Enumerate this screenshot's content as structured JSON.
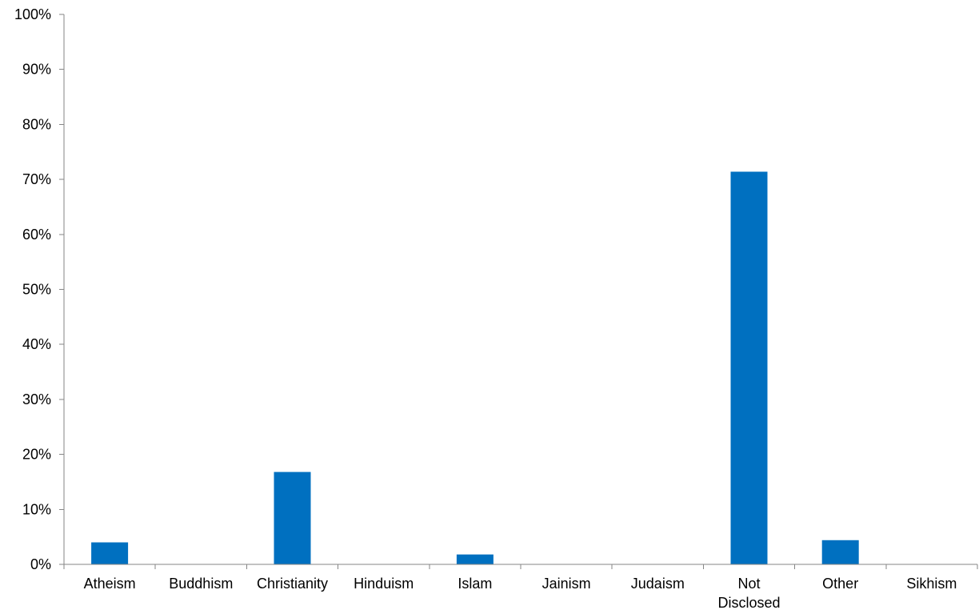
{
  "chart_data": {
    "type": "bar",
    "title": "",
    "xlabel": "",
    "ylabel": "",
    "categories": [
      [
        "Atheism"
      ],
      [
        "Buddhism"
      ],
      [
        "Christianity"
      ],
      [
        "Hinduism"
      ],
      [
        "Islam"
      ],
      [
        "Jainism"
      ],
      [
        "Judaism"
      ],
      [
        "Not",
        "Disclosed"
      ],
      [
        "Other"
      ],
      [
        "Sikhism"
      ]
    ],
    "values": [
      4,
      0,
      16.8,
      0,
      1.8,
      0,
      0,
      71.4,
      4.4,
      0
    ],
    "ylim": [
      0,
      100
    ],
    "yticks": [
      0,
      10,
      20,
      30,
      40,
      50,
      60,
      70,
      80,
      90,
      100
    ],
    "ytick_labels": [
      "0%",
      "10%",
      "20%",
      "30%",
      "40%",
      "50%",
      "60%",
      "70%",
      "80%",
      "90%",
      "100%"
    ],
    "grid": false,
    "legend": "none",
    "bar_color": "#0070C0"
  }
}
